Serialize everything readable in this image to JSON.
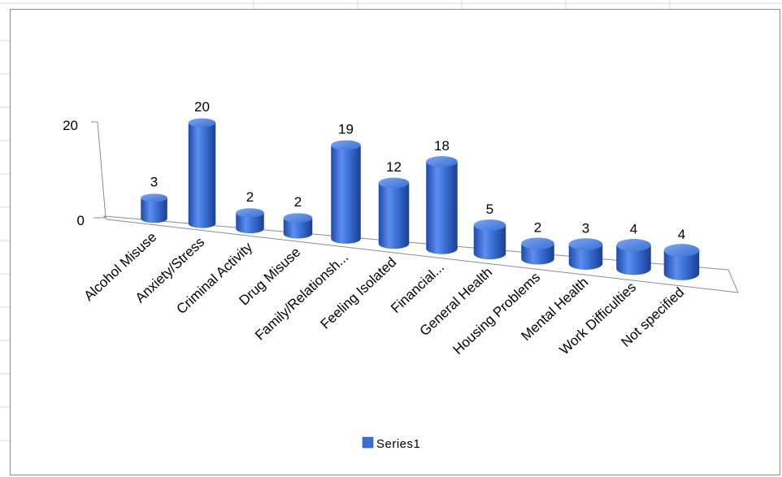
{
  "chart_data": {
    "type": "bar",
    "categories": [
      "Alcohol Misuse",
      "Anxiety/Stress",
      "Criminal Activity",
      "Drug Misuse",
      "Family/Relationsh...",
      "Feeling Isolated",
      "Financial...",
      "General Health",
      "Housing Problems",
      "Mental Health",
      "Work Difficulties",
      "Not specified"
    ],
    "series": [
      {
        "name": "Series1",
        "values": [
          3,
          20,
          2,
          2,
          19,
          12,
          18,
          5,
          2,
          3,
          4,
          4
        ]
      }
    ],
    "y_ticks": [
      "0",
      "20"
    ],
    "ylim": [
      0,
      20
    ],
    "legend_position": "bottom",
    "bar_color": "#3a6fd4",
    "bar_dark_color": "#1f4aa8",
    "bar_light_color": "#7aa6f2"
  }
}
